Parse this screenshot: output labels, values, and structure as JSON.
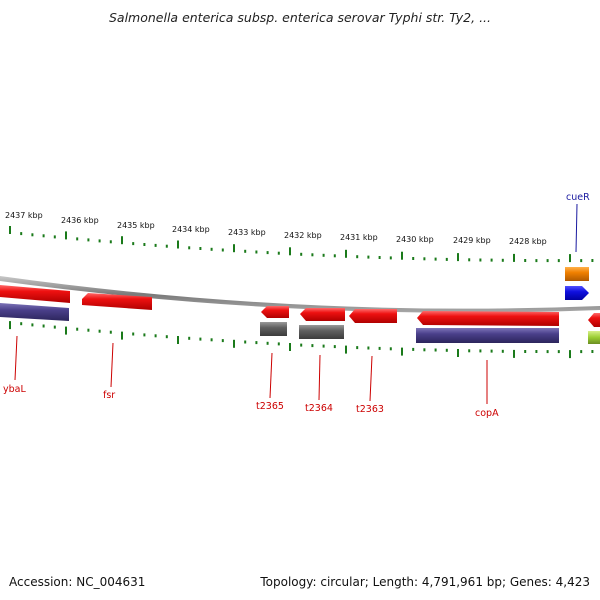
{
  "title": "Salmonella enterica subsp. enterica serovar Typhi str. Ty2, ...",
  "footer": {
    "accession": "Accession: NC_004631",
    "summary": "Topology: circular; Length: 4,791,961 bp; Genes: 4,423"
  },
  "colors": {
    "backbone": "#8c8c8c",
    "tick": "#1a7a1a",
    "gene_red": "#ee1111",
    "gene_purple": "#4a3f8a",
    "gene_gray": "#606060",
    "gene_orange": "#f08000",
    "gene_blue": "#1010e0",
    "gene_olive": "#9acd32",
    "label_red": "#cc0000",
    "label_blue": "#1a1aa0"
  },
  "scale": {
    "unit": "kbp",
    "tick_labels": [
      "2437 kbp",
      "2436 kbp",
      "2435 kbp",
      "2434 kbp",
      "2433 kbp",
      "2432 kbp",
      "2431 kbp",
      "2430 kbp",
      "2429 kbp",
      "2428 kbp"
    ]
  },
  "genes": [
    {
      "name": "ybaL",
      "color": "red"
    },
    {
      "name": "fsr",
      "color": "red"
    },
    {
      "name": "t2365",
      "color": "red"
    },
    {
      "name": "t2364",
      "color": "red"
    },
    {
      "name": "t2363",
      "color": "red"
    },
    {
      "name": "copA",
      "color": "red"
    },
    {
      "name": "cueR",
      "color": "blue"
    }
  ]
}
